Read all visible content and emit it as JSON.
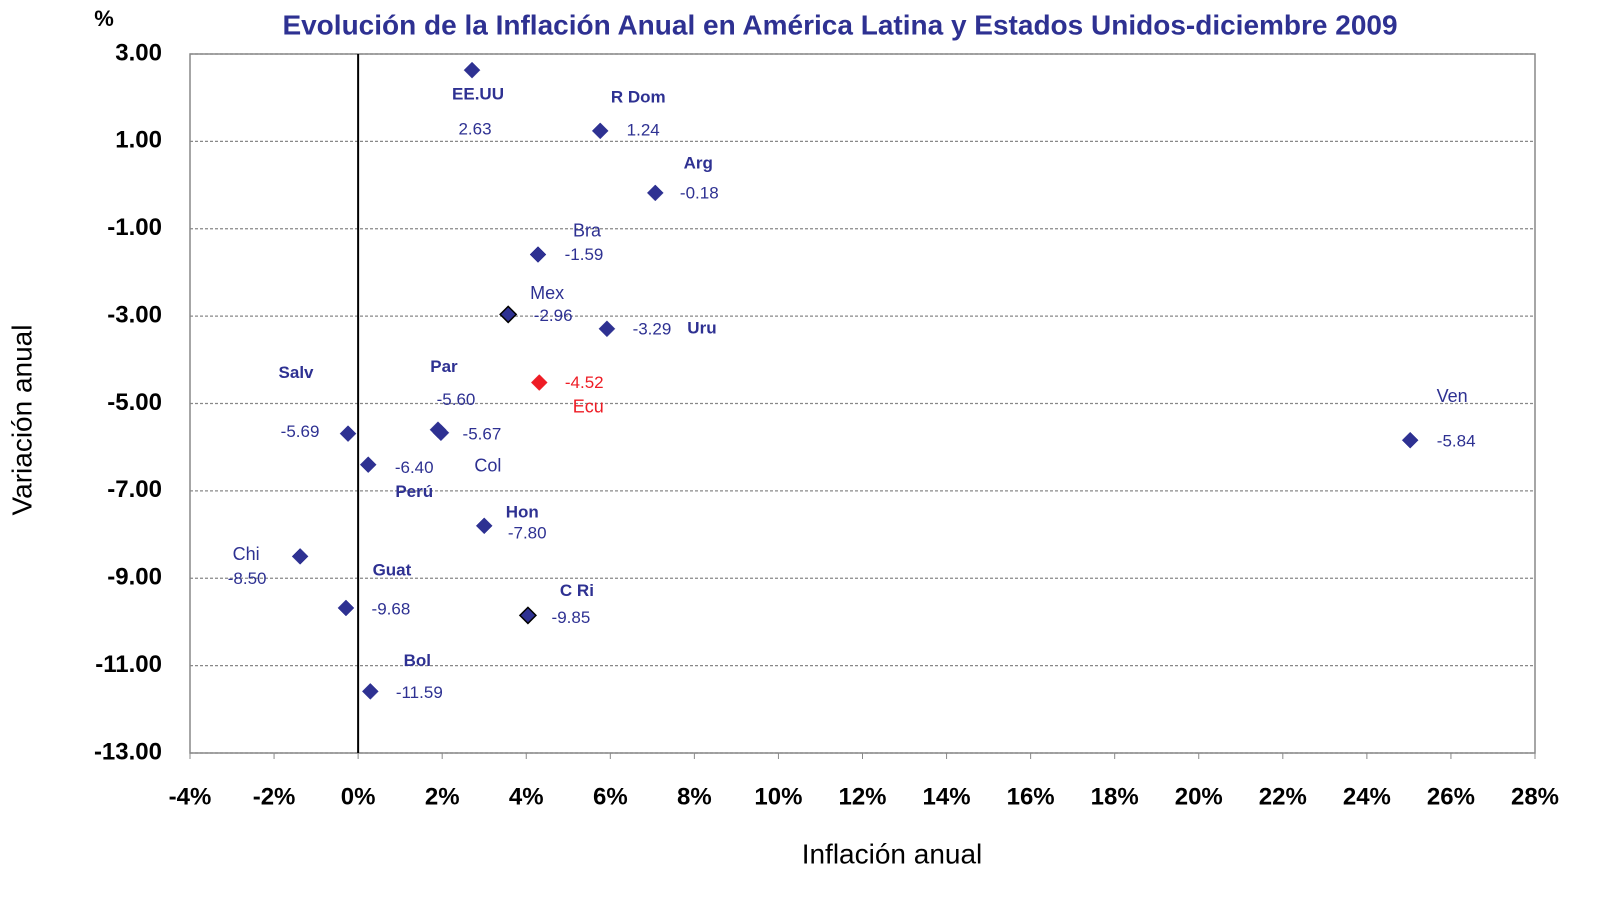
{
  "chart_data": {
    "type": "scatter",
    "title": "Evolución de la Inflación Anual en América Latina y Estados Unidos-diciembre 2009",
    "y_unit": "%",
    "x_label": "Inflación anual",
    "y_label": "Variación anual",
    "point_labels": [
      "EE.UU",
      "R Dom",
      "Arg",
      "Bra",
      "Mex",
      "Uru",
      "Ecu",
      "Ven",
      "Salv",
      "Par",
      "Col",
      "Perú",
      "Hon",
      "Chi",
      "Guat",
      "C Ri",
      "Bol"
    ],
    "x": [
      2.71,
      5.76,
      7.07,
      4.28,
      3.57,
      5.92,
      4.31,
      25.03,
      -0.24,
      1.9,
      1.97,
      0.24,
      3.0,
      -1.38,
      -0.29,
      4.04,
      0.29
    ],
    "values": [
      2.63,
      1.24,
      -0.18,
      -1.59,
      -2.96,
      -3.29,
      -4.52,
      -5.84,
      -5.69,
      -5.6,
      -5.67,
      -6.4,
      -7.8,
      -8.5,
      -9.68,
      -9.85,
      -11.59
    ],
    "value_labels": [
      "2.63",
      "1.24",
      "-0.18",
      "-1.59",
      "-2.96",
      "-3.29",
      "-4.52",
      "-5.84",
      "-5.69",
      "-5.60",
      "-5.67",
      "-6.40",
      "-7.80",
      "-8.50",
      "-9.68",
      "-9.85",
      "-11.59"
    ],
    "colors": [
      "#2e3192",
      "#2e3192",
      "#2e3192",
      "#2e3192",
      "#2e3192",
      "#2e3192",
      "#ee1c25",
      "#2e3192",
      "#2e3192",
      "#2e3192",
      "#2e3192",
      "#2e3192",
      "#2e3192",
      "#2e3192",
      "#2e3192",
      "#2e3192",
      "#2e3192"
    ],
    "xlim": [
      -4,
      28
    ],
    "ylim": [
      -13,
      3
    ],
    "xticks": [
      {
        "value": -4,
        "label": "-4%"
      },
      {
        "value": -2,
        "label": "-2%"
      },
      {
        "value": 0,
        "label": "0%"
      },
      {
        "value": 2,
        "label": "2%"
      },
      {
        "value": 4,
        "label": "4%"
      },
      {
        "value": 6,
        "label": "6%"
      },
      {
        "value": 8,
        "label": "8%"
      },
      {
        "value": 10,
        "label": "10%"
      },
      {
        "value": 12,
        "label": "12%"
      },
      {
        "value": 14,
        "label": "14%"
      },
      {
        "value": 16,
        "label": "16%"
      },
      {
        "value": 18,
        "label": "18%"
      },
      {
        "value": 20,
        "label": "20%"
      },
      {
        "value": 22,
        "label": "22%"
      },
      {
        "value": 24,
        "label": "24%"
      },
      {
        "value": 26,
        "label": "26%"
      },
      {
        "value": 28,
        "label": "28%"
      }
    ],
    "yticks": [
      {
        "value": 3,
        "label": "3.00"
      },
      {
        "value": 1,
        "label": "1.00"
      },
      {
        "value": -1,
        "label": "-1.00"
      },
      {
        "value": -3,
        "label": "-3.00"
      },
      {
        "value": -5,
        "label": "-5.00"
      },
      {
        "value": -7,
        "label": "-7.00"
      },
      {
        "value": -9,
        "label": "-9.00"
      },
      {
        "value": -11,
        "label": "-11.00"
      },
      {
        "value": -13,
        "label": "-13.00"
      }
    ],
    "grid": true
  }
}
